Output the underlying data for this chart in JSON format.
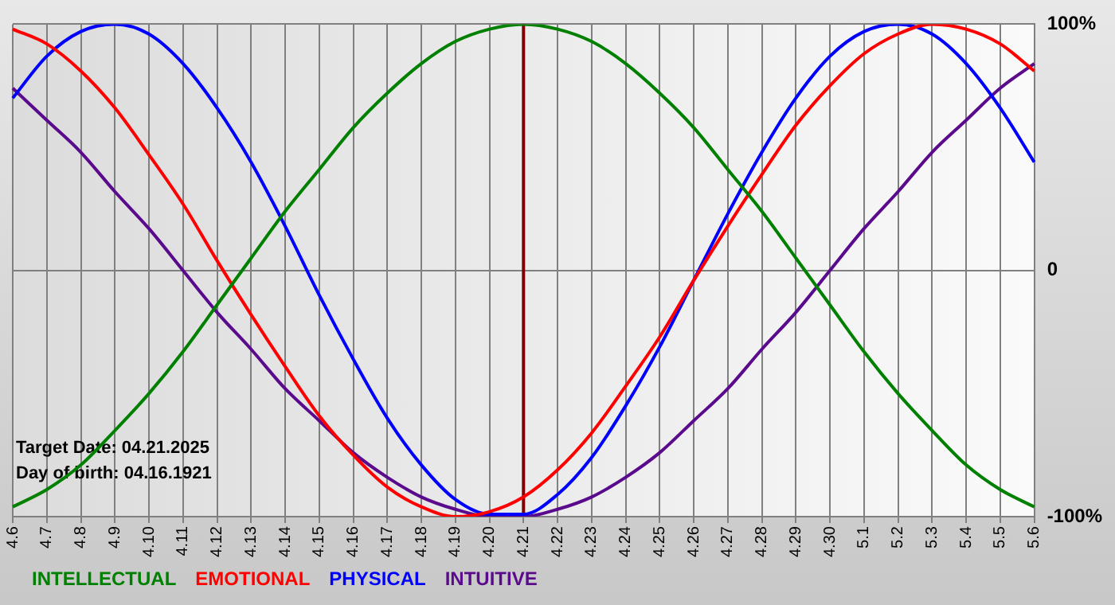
{
  "chart_data": {
    "type": "line",
    "categories": [
      "4.6",
      "4.7",
      "4.8",
      "4.9",
      "4.10",
      "4.11",
      "4.12",
      "4.13",
      "4.14",
      "4.15",
      "4.16",
      "4.17",
      "4.18",
      "4.19",
      "4.20",
      "4.21",
      "4.22",
      "4.23",
      "4.24",
      "4.25",
      "4.26",
      "4.27",
      "4.28",
      "4.29",
      "4.30",
      "5.1",
      "5.2",
      "5.3",
      "5.4",
      "5.5",
      "5.6"
    ],
    "series": [
      {
        "name": "INTELLECTUAL",
        "color": "#008000",
        "values": [
          -96,
          -89,
          -79,
          -65,
          -50,
          -33,
          -14,
          5,
          24,
          41,
          58,
          72,
          84,
          93,
          98,
          100,
          98,
          93,
          84,
          72,
          58,
          41,
          24,
          5,
          -14,
          -33,
          -50,
          -65,
          -79,
          -89,
          -96
        ]
      },
      {
        "name": "EMOTIONAL",
        "color": "#ff0000",
        "values": [
          98,
          92,
          81,
          66,
          47,
          27,
          4,
          -18,
          -39,
          -59,
          -75,
          -88,
          -96,
          -100,
          -98,
          -92,
          -81,
          -66,
          -47,
          -27,
          -4,
          18,
          39,
          59,
          75,
          88,
          96,
          100,
          98,
          92,
          81
        ]
      },
      {
        "name": "PHYSICAL",
        "color": "#0000ff",
        "values": [
          70,
          87,
          97,
          100,
          96,
          84,
          66,
          44,
          18,
          -10,
          -36,
          -60,
          -79,
          -93,
          -99,
          -99,
          -91,
          -76,
          -55,
          -31,
          -4,
          23,
          48,
          70,
          87,
          97,
          100,
          96,
          84,
          66,
          44
        ]
      },
      {
        "name": "INTUITIVE",
        "color": "#5a0a8c",
        "values": [
          74,
          61,
          48,
          32,
          17,
          0,
          -17,
          -32,
          -48,
          -61,
          -74,
          -84,
          -92,
          -97,
          -100,
          -100,
          -97,
          -92,
          -84,
          -74,
          -61,
          -48,
          -32,
          -17,
          0,
          17,
          32,
          48,
          61,
          74,
          84
        ]
      }
    ],
    "ylim": [
      -100,
      100
    ],
    "yticks": [
      {
        "value": -100,
        "label": "-100%"
      },
      0,
      {
        "value": 100,
        "label": "100%"
      }
    ],
    "grid": true,
    "legend": "bottom left",
    "marker": "none",
    "line_style": "solid",
    "ref_lines": [
      {
        "axis": "x",
        "value": "4.21",
        "color": "#800000"
      }
    ],
    "annotations": [
      "Target Date: 04.21.2025",
      "Day of birth: 04.16.1921"
    ]
  }
}
